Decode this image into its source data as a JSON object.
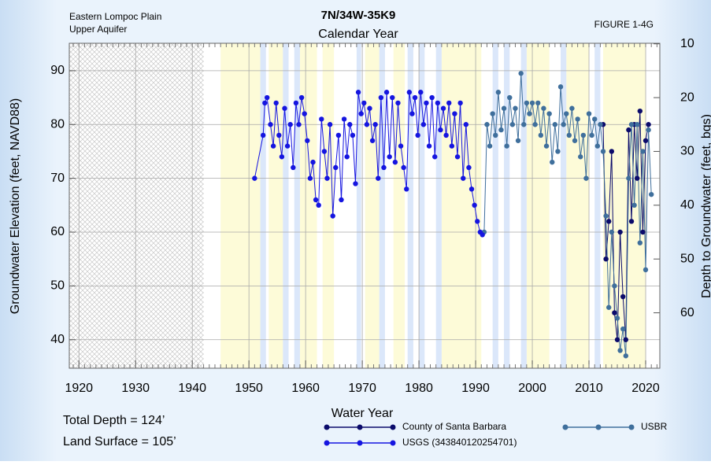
{
  "chart_data": {
    "type": "line",
    "title": "7N/34W-35K9",
    "subtitle": "Calendar Year",
    "header_left": [
      "Eastern Lompoc Plain",
      "Upper Aquifer"
    ],
    "figure_label": "FIGURE 1-4G",
    "x_label": "Water Year",
    "y_label": "Groundwater Elevation (feet, NAVD88)",
    "y2_label": "Depth to Groundwater (feet, bgs)",
    "notes": [
      "Total Depth = 124’",
      "Land Surface = 105’"
    ],
    "xlim": [
      1918.3,
      2022.5
    ],
    "xticks": [
      1920,
      1930,
      1940,
      1950,
      1960,
      1970,
      1980,
      1990,
      2000,
      2010,
      2020
    ],
    "ylim": [
      34.7,
      95.1
    ],
    "yticks": [
      40,
      50,
      60,
      70,
      80,
      90
    ],
    "y2lim": [
      70.3,
      9.9
    ],
    "y2ticks": [
      10,
      20,
      30,
      40,
      50,
      60
    ],
    "no_data_period": [
      1918.3,
      1942
    ],
    "dry_periods": [
      [
        1945,
        1952
      ],
      [
        1953.5,
        1956
      ],
      [
        1959,
        1962
      ],
      [
        1963,
        1965
      ],
      [
        1970.5,
        1973
      ],
      [
        1975.5,
        1977.5
      ],
      [
        1984,
        1991
      ],
      [
        1999,
        2003
      ],
      [
        2006,
        2010
      ],
      [
        2012.5,
        2020
      ]
    ],
    "wet_periods": [
      [
        1952,
        1953
      ],
      [
        1956,
        1957
      ],
      [
        1958,
        1959
      ],
      [
        1969,
        1969.8
      ],
      [
        1973,
        1974
      ],
      [
        1978,
        1979
      ],
      [
        1980,
        1981
      ],
      [
        1983,
        1984
      ],
      [
        1993,
        1994
      ],
      [
        1995,
        1996
      ],
      [
        1998,
        1999
      ],
      [
        2005,
        2006
      ],
      [
        2011,
        2012
      ]
    ],
    "series": [
      {
        "name": "County of Santa Barbara",
        "color": "#0b0b6b",
        "x": [
          2012.5,
          2013.0,
          2013.5,
          2014.0,
          2014.5,
          2015.0,
          2015.5,
          2016.0,
          2016.5,
          2017.0,
          2017.5,
          2018.0,
          2018.5,
          2019.0,
          2019.5,
          2020.0,
          2020.5
        ],
        "values": [
          80,
          55,
          62,
          75,
          45,
          40,
          60,
          48,
          40,
          79,
          62,
          80,
          70,
          82.5,
          60,
          77,
          80
        ]
      },
      {
        "name": "USBR",
        "color": "#3f6f9c",
        "x": [
          1991.5,
          1992.0,
          1992.5,
          1993.0,
          1993.5,
          1994.0,
          1994.5,
          1995.0,
          1995.5,
          1996.0,
          1996.5,
          1997.0,
          1997.5,
          1998.0,
          1998.5,
          1999.0,
          1999.5,
          2000.0,
          2000.5,
          2001.0,
          2001.5,
          2002.0,
          2002.5,
          2003.0,
          2003.5,
          2004.0,
          2004.5,
          2005.0,
          2005.5,
          2006.0,
          2006.5,
          2007.0,
          2007.5,
          2008.0,
          2008.5,
          2009.0,
          2009.5,
          2010.0,
          2010.5,
          2011.0,
          2011.5,
          2012.0,
          2012.5,
          2013.0,
          2013.5,
          2014.0,
          2014.5,
          2015.0,
          2015.5,
          2016.0,
          2016.5,
          2017.0,
          2017.5,
          2018.0,
          2018.5,
          2019.0,
          2019.5,
          2020.0,
          2020.5,
          2021.0
        ],
        "values": [
          60,
          80,
          76,
          82,
          78,
          86,
          79,
          83,
          76,
          85,
          80,
          83,
          77,
          89.5,
          80,
          84,
          82,
          84,
          80,
          84,
          78,
          83,
          76,
          82,
          73,
          80,
          75,
          87,
          80,
          82,
          78,
          83,
          77,
          81,
          74,
          78,
          70,
          82,
          78,
          81,
          76,
          80,
          75,
          63,
          46,
          60,
          50,
          44,
          38,
          42,
          37,
          70,
          80,
          65,
          80,
          58,
          75,
          53,
          79,
          67
        ]
      },
      {
        "name": "USGS (343840120254701)",
        "color": "#1515e0",
        "x": [
          1951.0,
          1952.5,
          1952.8,
          1953.2,
          1953.8,
          1954.3,
          1954.8,
          1955.3,
          1955.8,
          1956.3,
          1956.8,
          1957.3,
          1957.8,
          1958.3,
          1958.8,
          1959.3,
          1959.8,
          1960.3,
          1960.8,
          1961.3,
          1961.8,
          1962.3,
          1962.8,
          1963.3,
          1963.8,
          1964.3,
          1964.8,
          1965.3,
          1965.8,
          1966.3,
          1966.8,
          1967.3,
          1967.8,
          1968.3,
          1968.8,
          1969.3,
          1969.8,
          1970.3,
          1970.8,
          1971.3,
          1971.8,
          1972.3,
          1972.8,
          1973.3,
          1973.8,
          1974.3,
          1974.8,
          1975.3,
          1975.8,
          1976.3,
          1976.8,
          1977.3,
          1977.8,
          1978.3,
          1978.8,
          1979.3,
          1979.8,
          1980.3,
          1980.8,
          1981.3,
          1981.8,
          1982.3,
          1982.8,
          1983.3,
          1983.8,
          1984.3,
          1984.8,
          1985.3,
          1985.8,
          1986.3,
          1986.8,
          1987.3,
          1987.8,
          1988.3,
          1988.8,
          1989.3,
          1989.8,
          1990.3,
          1990.8,
          1991.2
        ],
        "values": [
          70,
          78,
          84,
          85,
          80,
          76,
          84,
          78,
          74,
          83,
          76,
          80,
          72,
          84,
          80,
          85,
          82,
          77,
          70,
          73,
          66,
          65,
          81,
          75,
          70,
          80,
          63,
          72,
          78,
          66,
          81,
          74,
          80,
          78,
          69,
          86,
          82,
          84,
          80,
          83,
          77,
          80,
          70,
          85,
          72,
          86,
          74,
          85,
          73,
          84,
          76,
          72,
          68,
          86,
          82,
          85,
          78,
          86,
          80,
          84,
          76,
          85,
          74,
          84,
          79,
          83,
          78,
          84,
          76,
          82,
          74,
          84,
          70,
          80,
          72,
          68,
          65,
          62,
          60,
          59.5
        ]
      }
    ]
  }
}
